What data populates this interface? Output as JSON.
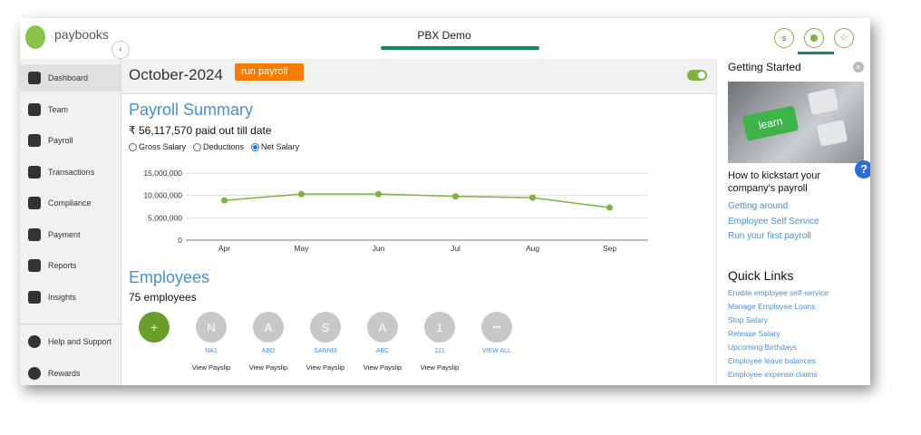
{
  "sidebar": {
    "logo": "paybooks",
    "nav": [
      "Dashboard",
      "Team",
      "Payroll",
      "Transactions",
      "Compliance",
      "Payment",
      "Reports",
      "Insights"
    ],
    "footer_nav": [
      "Help and Support",
      "Rewards"
    ]
  },
  "header": {
    "title": "PBX Demo",
    "user_initial": "s"
  },
  "toolbar": {
    "period": "October-2024",
    "run_button": "run payroll"
  },
  "summary": {
    "title": "Payroll Summary",
    "total": "₹ 56,117,570 paid out till date",
    "options": [
      "Gross Salary",
      "Deductions",
      "Net Salary"
    ]
  },
  "chart_data": {
    "type": "line",
    "categories": [
      "Apr",
      "May",
      "Jun",
      "Jul",
      "Aug",
      "Sep"
    ],
    "series": [
      {
        "name": "Net Salary",
        "color": "#7cb342",
        "values": [
          8900000,
          10300000,
          10300000,
          9800000,
          9500000,
          7300000
        ]
      }
    ],
    "ylim": [
      0,
      15000000
    ],
    "yticks": [
      0,
      {
        "value": 5000000,
        "label": "5,000,000"
      },
      {
        "value": 10000000,
        "label": "10,000,000"
      },
      {
        "value": 15000000,
        "label": "15,000,000"
      }
    ],
    "grid": true
  },
  "employees": {
    "title": "Employees",
    "count": "75 employees",
    "add": "+",
    "list": [
      {
        "initial": "N",
        "name": "NA1",
        "action": "View Payslip"
      },
      {
        "initial": "A",
        "name": "ABD",
        "action": "View Payslip"
      },
      {
        "initial": "S",
        "name": "SANNIII",
        "action": "View Payslip"
      },
      {
        "initial": "A",
        "name": "ABC",
        "action": "View Payslip"
      },
      {
        "initial": "1",
        "name": "121",
        "action": "View Payslip"
      }
    ],
    "view_all": {
      "initial": "•••",
      "name": "VIEW ALL"
    }
  },
  "getting_started": {
    "title": "Getting Started",
    "image_label": "learn",
    "heading": "How to kickstart your company's payroll",
    "links": [
      "Getting around",
      "Employee Self Service",
      "Run your first payroll"
    ]
  },
  "quick_links": {
    "title": "Quick Links",
    "links": [
      "Enable employee self-service",
      "Manage Employee Loans",
      "Stop Salary",
      "Release Salary",
      "Upcoming Birthdays",
      "Employee leave balances",
      "Employee expense claims"
    ]
  },
  "help": {
    "icon": "?"
  }
}
